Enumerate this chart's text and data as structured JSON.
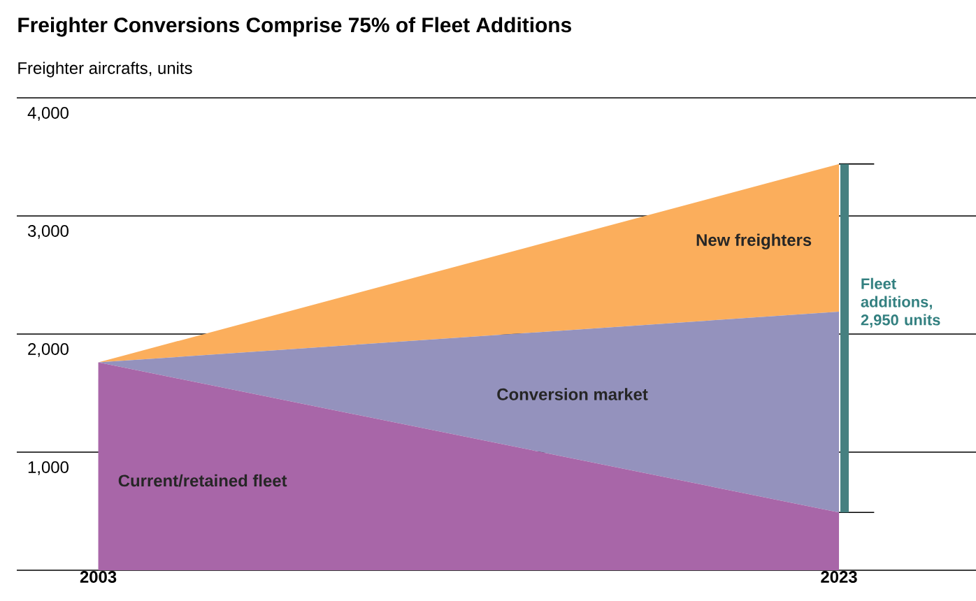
{
  "chart_data": {
    "type": "area",
    "stacked": true,
    "title": "Freighter Conversions Comprise 75% of Fleet Additions",
    "subtitle": "Freighter aircrafts, units",
    "x": [
      2003,
      2023
    ],
    "series": [
      {
        "name": "Current/retained fleet",
        "color": "#a866a8",
        "values": [
          1760,
          490
        ]
      },
      {
        "name": "Conversion market",
        "color": "#9492bd",
        "values": [
          0,
          1700
        ]
      },
      {
        "name": "New freighters",
        "color": "#fbae5c",
        "values": [
          0,
          1250
        ]
      }
    ],
    "xlim": [
      2000.8,
      2026.7
    ],
    "xticks": [
      2003,
      2023
    ],
    "ylim": [
      0,
      4000
    ],
    "yticks": [
      {
        "value": 0,
        "label": null
      },
      {
        "value": 1000,
        "label": "1,000"
      },
      {
        "value": 2000,
        "label": "2,000"
      },
      {
        "value": 3000,
        "label": "3,000"
      },
      {
        "value": 4000,
        "label": "4,000"
      }
    ],
    "grid": "y",
    "annotations": [
      "Fleet additions, 2,950 units"
    ]
  }
}
